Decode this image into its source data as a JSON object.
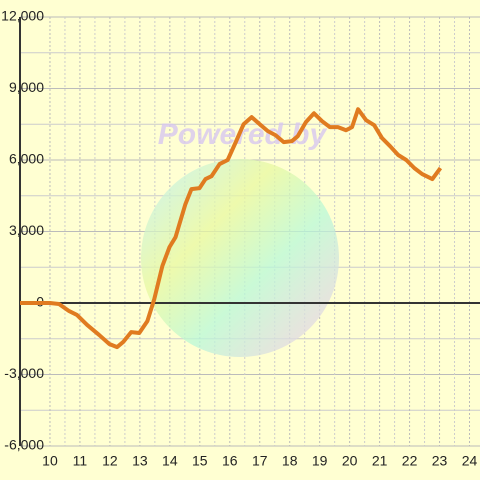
{
  "chart_data": {
    "type": "line",
    "watermark": "Powered by",
    "x": [
      9,
      10,
      10.3,
      10.64,
      10.9,
      11.24,
      11.64,
      11.98,
      12.24,
      12.44,
      12.71,
      12.98,
      13.25,
      13.48,
      13.75,
      13.99,
      14.19,
      14.32,
      14.52,
      14.72,
      14.99,
      15.19,
      15.39,
      15.66,
      15.93,
      16.2,
      16.46,
      16.73,
      17,
      17.27,
      17.53,
      17.8,
      18.07,
      18.27,
      18.54,
      18.81,
      19.08,
      19.34,
      19.61,
      19.88,
      20.08,
      20.28,
      20.55,
      20.82,
      21.08,
      21.35,
      21.62,
      21.89,
      22.16,
      22.42,
      22.76,
      23.03
    ],
    "series": [
      {
        "color": "#e07b20",
        "values": [
          0,
          0,
          -40,
          -340,
          -500,
          -920,
          -1340,
          -1720,
          -1850,
          -1640,
          -1220,
          -1260,
          -760,
          160,
          1550,
          2350,
          2760,
          3310,
          4150,
          4780,
          4820,
          5200,
          5320,
          5830,
          6000,
          6750,
          7500,
          7800,
          7500,
          7210,
          7040,
          6750,
          6790,
          7000,
          7590,
          7960,
          7630,
          7380,
          7380,
          7250,
          7380,
          8130,
          7670,
          7460,
          6920,
          6580,
          6210,
          6000,
          5660,
          5410,
          5200,
          5660
        ]
      }
    ],
    "xlim": [
      9,
      24.35
    ],
    "xticks": [
      10,
      11,
      12,
      13,
      14,
      15,
      16,
      17,
      18,
      19,
      20,
      21,
      22,
      23,
      24
    ],
    "ylim": [
      -6000,
      12000
    ],
    "yticks": [
      {
        "value": -6000,
        "label": "-6,000"
      },
      {
        "value": -3000,
        "label": "-3,000"
      },
      0,
      {
        "value": 3000,
        "label": "3,000"
      },
      {
        "value": 6000,
        "label": "6,000"
      },
      {
        "value": 9000,
        "label": "9,000"
      },
      {
        "value": 12000,
        "label": "12,000"
      }
    ],
    "grid": true
  }
}
